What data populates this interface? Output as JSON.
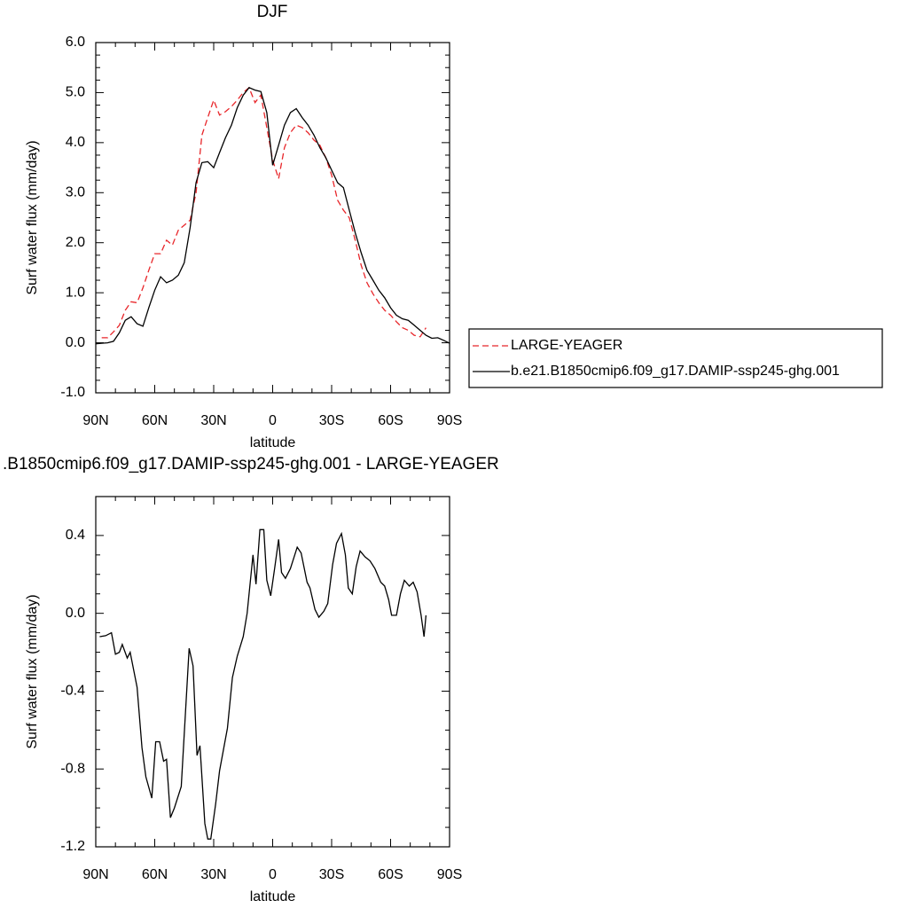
{
  "chart_data": [
    {
      "type": "line",
      "title": "DJF",
      "xlabel": "latitude",
      "ylabel": "Surf water flux (mm/day)",
      "x": [
        90,
        87,
        84,
        81,
        78,
        75,
        72,
        69,
        66,
        63,
        60,
        57,
        54,
        51,
        48,
        45,
        42,
        39,
        36,
        33,
        30,
        27,
        24,
        21,
        18,
        15,
        12,
        9,
        6,
        3,
        0,
        -3,
        -6,
        -9,
        -12,
        -15,
        -18,
        -21,
        -24,
        -27,
        -30,
        -33,
        -36,
        -39,
        -42,
        -45,
        -48,
        -51,
        -54,
        -57,
        -60,
        -63,
        -66,
        -69,
        -72,
        -75,
        -78,
        -81,
        -84,
        -87,
        -90
      ],
      "series": [
        {
          "name": "LARGE-YEAGER",
          "color": "#e8262a",
          "dash": true,
          "values": [
            null,
            0.1,
            0.1,
            0.22,
            0.35,
            0.65,
            0.82,
            0.8,
            1.1,
            1.45,
            1.78,
            1.78,
            2.05,
            1.95,
            2.25,
            2.35,
            2.45,
            3.0,
            4.15,
            4.5,
            4.85,
            4.55,
            4.62,
            4.72,
            4.85,
            5.0,
            5.1,
            4.8,
            4.95,
            4.3,
            3.65,
            3.28,
            3.9,
            4.2,
            4.35,
            4.3,
            4.2,
            4.05,
            3.95,
            3.7,
            3.35,
            2.85,
            2.65,
            2.5,
            2.05,
            1.55,
            1.2,
            0.98,
            0.8,
            0.65,
            0.55,
            0.42,
            0.3,
            0.25,
            0.15,
            0.12,
            0.3,
            null,
            null,
            null,
            null
          ]
        },
        {
          "name": "b.e21.B1850cmip6.f09_g17.DAMIP-ssp245-ghg.001",
          "color": "#000000",
          "dash": false,
          "values": [
            -0.02,
            -0.01,
            0.0,
            0.03,
            0.2,
            0.45,
            0.52,
            0.38,
            0.33,
            0.7,
            1.05,
            1.32,
            1.2,
            1.25,
            1.35,
            1.6,
            2.3,
            3.2,
            3.6,
            3.62,
            3.5,
            3.8,
            4.1,
            4.35,
            4.7,
            4.95,
            5.1,
            5.05,
            5.02,
            4.6,
            3.55,
            3.95,
            4.35,
            4.6,
            4.68,
            4.5,
            4.35,
            4.15,
            3.9,
            3.7,
            3.45,
            3.2,
            3.1,
            2.65,
            2.2,
            1.8,
            1.45,
            1.25,
            1.05,
            0.9,
            0.7,
            0.55,
            0.48,
            0.45,
            0.35,
            0.25,
            0.15,
            0.09,
            0.1,
            0.05,
            -0.01
          ]
        }
      ],
      "xlim": [
        90,
        -90
      ],
      "xticks": [
        {
          "value": 90,
          "label": "90N"
        },
        {
          "value": 60,
          "label": "60N"
        },
        {
          "value": 30,
          "label": "30N"
        },
        0,
        {
          "value": -30,
          "label": "30S"
        },
        {
          "value": -60,
          "label": "60S"
        },
        {
          "value": -90,
          "label": "90S"
        }
      ],
      "ylim": [
        -1,
        6
      ],
      "yticks": [
        {
          "value": -1,
          "label": "-1.0"
        },
        {
          "value": 0,
          "label": "0.0"
        },
        {
          "value": 1,
          "label": "1.0"
        },
        {
          "value": 2,
          "label": "2.0"
        },
        {
          "value": 3,
          "label": "3.0"
        },
        {
          "value": 4,
          "label": "4.0"
        },
        {
          "value": 5,
          "label": "5.0"
        },
        {
          "value": 6,
          "label": "6.0"
        }
      ],
      "legend": "right",
      "grid": false
    },
    {
      "type": "line",
      "title": ".B1850cmip6.f09_g17.DAMIP-ssp245-ghg.001 - LARGE-YEAGER",
      "xlabel": "latitude",
      "ylabel": "Surf water flux (mm/day)",
      "x": [
        88,
        85,
        82,
        80,
        78,
        76.5,
        74,
        72.5,
        69,
        66.5,
        64.5,
        61.5,
        59.5,
        57.5,
        55.5,
        54,
        52,
        50,
        46.5,
        42.5,
        40.5,
        38.5,
        37,
        34.5,
        33,
        31.5,
        29,
        27,
        23,
        20.5,
        18,
        15,
        13,
        10,
        8.5,
        6.5,
        4.5,
        3,
        1,
        -1,
        -3,
        -4.5,
        -6.5,
        -9,
        -12.5,
        -14.5,
        -17.5,
        -19,
        -21.5,
        -23.5,
        -26,
        -28,
        -30.5,
        -32.5,
        -35,
        -37,
        -38.5,
        -40.5,
        -42.5,
        -44.5,
        -47,
        -49.5,
        -52,
        -55,
        -57,
        -59,
        -60.5,
        -63,
        -65,
        -67,
        -69.5,
        -71.5,
        -73.5,
        -75.5,
        -77,
        -78
      ],
      "values": [
        -0.12,
        -0.115,
        -0.1,
        -0.21,
        -0.2,
        -0.16,
        -0.23,
        -0.2,
        -0.38,
        -0.69,
        -0.84,
        -0.95,
        -0.66,
        -0.66,
        -0.76,
        -0.75,
        -1.05,
        -1.0,
        -0.89,
        -0.18,
        -0.27,
        -0.73,
        -0.68,
        -1.08,
        -1.16,
        -1.16,
        -0.98,
        -0.81,
        -0.59,
        -0.33,
        -0.22,
        -0.12,
        0.0,
        0.3,
        0.15,
        0.43,
        0.43,
        0.17,
        0.09,
        0.23,
        0.38,
        0.21,
        0.18,
        0.23,
        0.34,
        0.31,
        0.16,
        0.13,
        0.02,
        -0.02,
        0.01,
        0.05,
        0.25,
        0.36,
        0.41,
        0.3,
        0.13,
        0.1,
        0.24,
        0.32,
        0.29,
        0.27,
        0.23,
        0.16,
        0.14,
        0.07,
        -0.01,
        -0.01,
        0.1,
        0.17,
        0.14,
        0.16,
        0.11,
        -0.01,
        -0.12,
        -0.01
      ],
      "color": "#000000",
      "xlim": [
        90,
        -90
      ],
      "xticks": [
        {
          "value": 90,
          "label": "90N"
        },
        {
          "value": 60,
          "label": "60N"
        },
        {
          "value": 30,
          "label": "30N"
        },
        0,
        {
          "value": -30,
          "label": "30S"
        },
        {
          "value": -60,
          "label": "60S"
        },
        {
          "value": -90,
          "label": "90S"
        }
      ],
      "ylim": [
        -1.2,
        0.6
      ],
      "yticks": [
        -1.2,
        -0.8,
        -0.4,
        {
          "value": 0,
          "label": "0.0"
        },
        0.4
      ],
      "grid": false
    }
  ]
}
